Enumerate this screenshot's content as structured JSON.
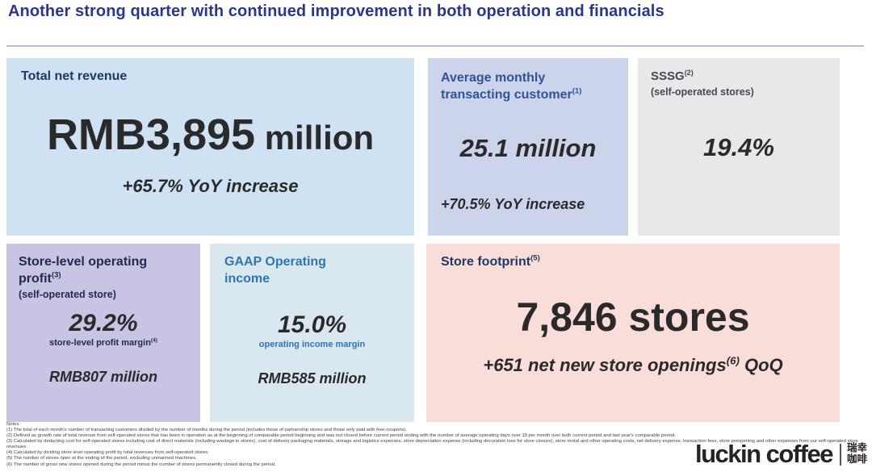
{
  "slide_title": "Another strong quarter with continued improvement in both operation and financials",
  "cards": {
    "total_net_revenue": {
      "label": "Total net revenue",
      "value": "RMB3,895",
      "unit": " million",
      "delta": "+65.7% YoY increase"
    },
    "avg_monthly_transacting_customer": {
      "label_line1": "Average monthly",
      "label_line2": "transacting customer",
      "label_sup": "(1)",
      "value": "25.1 million",
      "delta": "+70.5% YoY increase"
    },
    "sssg": {
      "label": "SSSG",
      "label_sup": "(2)",
      "sublabel": "(self-operated stores)",
      "value": "19.4%"
    },
    "store_level_operating_profit": {
      "label_line1": "Store-level operating",
      "label_line2": "profit",
      "label_sup": "(3)",
      "sublabel": "(self-operated store)",
      "value": "29.2%",
      "caption": "store-level profit margin",
      "caption_sup": "(4)",
      "amount": "RMB807 million"
    },
    "gaap_operating_income": {
      "label_line1": "GAAP Operating",
      "label_line2": "income",
      "value": "15.0%",
      "caption": "operating income margin",
      "amount": "RMB585 million"
    },
    "store_footprint": {
      "label": "Store footprint",
      "label_sup": "(5)",
      "value": "7,846 stores",
      "delta": "+651 net new store openings",
      "delta_sup": "(6)",
      "delta_suffix": " QoQ"
    }
  },
  "notes": {
    "heading": "Notes:",
    "items": [
      "(1) The total of each month's number of transacting customers divided by the number of months during the period (includes those of partnership stores and those only paid with free-coupons).",
      "(2) Defined as growth rate of total revenue from self-operated stores that has been in operation as at the beginning of comparable period beginning and was not closed before current period ending with the number of average operating days over 15 per month over both current period and last year's comparable period.",
      "(3) Calculated by deducting cost for self-operated stores including cost of direct materials (including wastage in stores), cost of delivery packaging materials, storage and logistics expenses, store depreciation expense (including decoration loss for store closure), store rental and other operating costs, net delivery expense, transaction fees, store preopening and other expenses from our self-operated store revenues.",
      "(4) Calculated by dividing store level operating profit by total revenues from self-operated stores.",
      "(5) The number of stores open at the ending of the period, excluding unmanned machines.",
      "(6) The number of gross new stores opened during the period minus the number of stores permanently closed during the period."
    ]
  },
  "logo": {
    "wordmark": "luckin coffee",
    "cn_line1": "瑞幸",
    "cn_line2": "咖啡"
  },
  "colors": {
    "title_blue": "#2b3690",
    "navy_header": "#1f3864",
    "medium_blue_header": "#2f5496",
    "bright_blue": "#2e75b6",
    "gray_header": "#4b4753",
    "dark_text": "#2b2a2a",
    "card_revenue_bg": "#cfe2f3",
    "card_customer_bg": "#ccd4eb",
    "card_sssg_bg": "#e9e7ea",
    "card_store_profit_bg": "#c7c5e3",
    "card_gaap_bg": "#d9e7ee",
    "card_footprint_bg": "#f9ddd9"
  }
}
